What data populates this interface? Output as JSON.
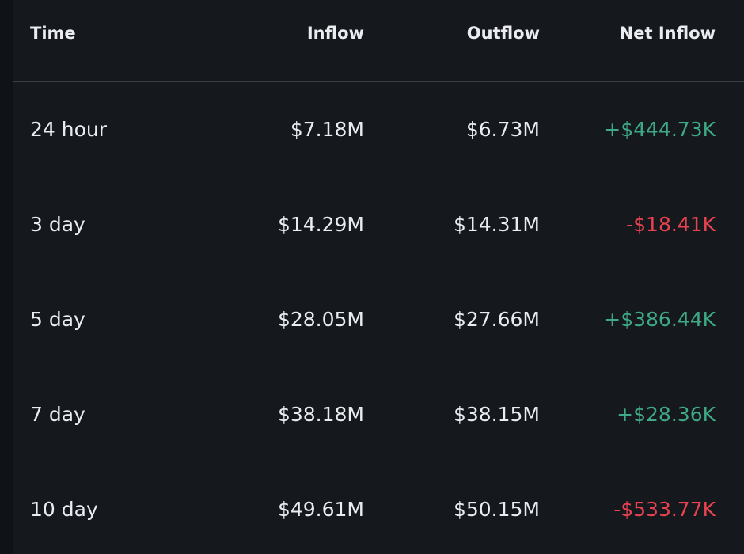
{
  "table": {
    "columns": {
      "time": "Time",
      "inflow": "Inflow",
      "outflow": "Outflow",
      "net_inflow": "Net Inflow"
    },
    "rows": [
      {
        "time": "24 hour",
        "inflow": "$7.18M",
        "outflow": "$6.73M",
        "net_inflow": "+$444.73K",
        "net_sign": "positive"
      },
      {
        "time": "3 day",
        "inflow": "$14.29M",
        "outflow": "$14.31M",
        "net_inflow": "-$18.41K",
        "net_sign": "negative"
      },
      {
        "time": "5 day",
        "inflow": "$28.05M",
        "outflow": "$27.66M",
        "net_inflow": "+$386.44K",
        "net_sign": "positive"
      },
      {
        "time": "7 day",
        "inflow": "$38.18M",
        "outflow": "$38.15M",
        "net_inflow": "+$28.36K",
        "net_sign": "positive"
      },
      {
        "time": "10 day",
        "inflow": "$49.61M",
        "outflow": "$50.15M",
        "net_inflow": "-$533.77K",
        "net_sign": "negative"
      }
    ]
  },
  "colors": {
    "background": "#0f1216",
    "panel": "#15181d",
    "positive": "#3fa885",
    "negative": "#e9434f",
    "text": "#eaecef",
    "divider": "#3a3f47"
  }
}
